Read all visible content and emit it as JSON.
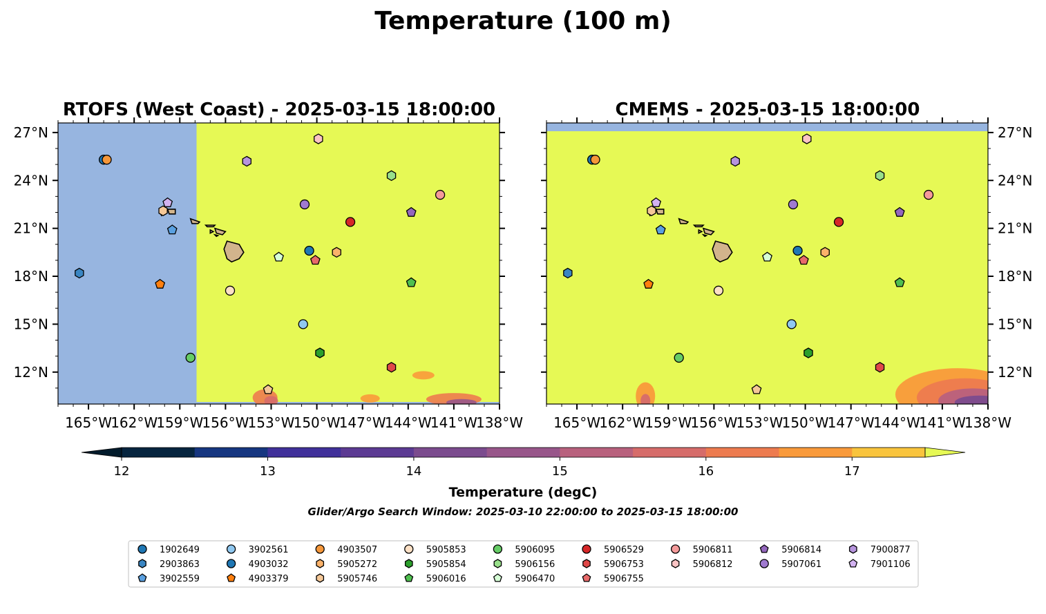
{
  "figure": {
    "title": "Temperature (100 m)",
    "subtitle": "Glider/Argo Search Window: 2025-03-10 22:00:00 to 2025-03-15 18:00:00"
  },
  "chart_data": {
    "type": "map",
    "title": "Temperature (100 m)",
    "panels": [
      {
        "title": "RTOFS (West Coast) - 2025-03-15 18:00:00",
        "lon_range": [
          -167,
          -138
        ],
        "lat_range": [
          10,
          27.6
        ],
        "model_domain_west_edge_lon": -157.9,
        "colored_field": "mostly >17.5 degC with warm-pool edges 15-17 degC near 10-12N"
      },
      {
        "title": "CMEMS - 2025-03-15 18:00:00",
        "lon_range": [
          -167,
          -138
        ],
        "lat_range": [
          10,
          27.6
        ],
        "colored_field": "mostly >17.5 degC with cooler 13-16 degC waters near 10-12N in the southeast"
      }
    ],
    "x_ticks": [
      "165°W",
      "162°W",
      "159°W",
      "156°W",
      "153°W",
      "150°W",
      "147°W",
      "144°W",
      "141°W",
      "138°W"
    ],
    "x_tick_values": [
      -165,
      -162,
      -159,
      -156,
      -153,
      -150,
      -147,
      -144,
      -141,
      -138
    ],
    "y_ticks": [
      "12°N",
      "15°N",
      "18°N",
      "21°N",
      "24°N",
      "27°N"
    ],
    "y_tick_values": [
      12,
      15,
      18,
      21,
      24,
      27
    ],
    "colorbar": {
      "label": "Temperature (degC)",
      "ticks": [
        "12",
        "13",
        "14",
        "15",
        "16",
        "17"
      ],
      "tick_values": [
        12,
        13,
        14,
        15,
        16,
        17
      ],
      "min": 12,
      "max": 17.5,
      "step": 0.5,
      "colors": [
        "#06253f",
        "#163680",
        "#40309a",
        "#5c3a93",
        "#7b4b8e",
        "#98568a",
        "#b8617d",
        "#d66c6a",
        "#ed7b4f",
        "#f99a3b",
        "#f9c43d"
      ],
      "under_color": "#021b2c",
      "over_color": "#e6f955"
    },
    "ocean_nodata_color": "#97b5e0",
    "land_color": "#d2b48c",
    "floats": [
      {
        "id": "1902649",
        "lon": -164.0,
        "lat": 25.3,
        "marker": "circle",
        "color": "#1f77b4"
      },
      {
        "id": "2903863",
        "lon": -165.6,
        "lat": 18.2,
        "marker": "hexagon",
        "color": "#3a86c3"
      },
      {
        "id": "3902559",
        "lon": -159.5,
        "lat": 20.9,
        "marker": "pentagon",
        "color": "#5aa0e0"
      },
      {
        "id": "3902561",
        "lon": -150.9,
        "lat": 15.0,
        "marker": "circle",
        "color": "#90c8f0"
      },
      {
        "id": "4903032",
        "lon": -150.5,
        "lat": 19.6,
        "marker": "circle",
        "color": "#1f77b4"
      },
      {
        "id": "4903379",
        "lon": -160.3,
        "lat": 17.5,
        "marker": "pentagon",
        "color": "#ff7f0e"
      },
      {
        "id": "4903507",
        "lon": -163.8,
        "lat": 25.3,
        "marker": "circle",
        "color": "#f5973a"
      },
      {
        "id": "5905272",
        "lon": -148.7,
        "lat": 19.5,
        "marker": "hexagon",
        "color": "#fbb26a"
      },
      {
        "id": "5905746",
        "lon": -160.1,
        "lat": 22.1,
        "marker": "hexagon",
        "color": "#f5c898"
      },
      {
        "id": "5905853",
        "lon": -155.7,
        "lat": 17.1,
        "marker": "circle",
        "color": "#fde0c5"
      },
      {
        "id": "5905854",
        "lon": -149.8,
        "lat": 13.2,
        "marker": "hexagon",
        "color": "#2ca02c"
      },
      {
        "id": "5906016",
        "lon": -143.8,
        "lat": 17.6,
        "marker": "pentagon",
        "color": "#4fbf4f"
      },
      {
        "id": "5906095",
        "lon": -158.3,
        "lat": 12.9,
        "marker": "circle",
        "color": "#66cc66"
      },
      {
        "id": "5906156",
        "lon": -145.1,
        "lat": 24.3,
        "marker": "hexagon",
        "color": "#98df8a"
      },
      {
        "id": "5906470",
        "lon": -152.5,
        "lat": 19.2,
        "marker": "pentagon",
        "color": "#d6ffd6"
      },
      {
        "id": "5906529",
        "lon": -147.8,
        "lat": 21.4,
        "marker": "circle",
        "color": "#d62728"
      },
      {
        "id": "5906753",
        "lon": -145.1,
        "lat": 12.3,
        "marker": "hexagon",
        "color": "#e04848"
      },
      {
        "id": "5906755",
        "lon": -150.1,
        "lat": 19.0,
        "marker": "pentagon",
        "color": "#e86a6a"
      },
      {
        "id": "5906811",
        "lon": -141.9,
        "lat": 23.1,
        "marker": "circle",
        "color": "#f49a9a"
      },
      {
        "id": "5906812",
        "lon": -149.9,
        "lat": 26.6,
        "marker": "hexagon",
        "color": "#fcc4c4"
      },
      {
        "id": "5906814",
        "lon": -143.8,
        "lat": 22.0,
        "marker": "pentagon",
        "color": "#9467bd"
      },
      {
        "id": "5907061",
        "lon": -150.8,
        "lat": 22.5,
        "marker": "circle",
        "color": "#a07ad0"
      },
      {
        "id": "7900877",
        "lon": -154.6,
        "lat": 25.2,
        "marker": "hexagon",
        "color": "#b694dd"
      },
      {
        "id": "7901106",
        "lon": -159.8,
        "lat": 22.6,
        "marker": "pentagon",
        "color": "#d2b2f0"
      },
      {
        "id": "5905746b",
        "lon": -153.2,
        "lat": 10.9,
        "marker": "pentagon",
        "color": "#f5c898",
        "unlabeled": true
      }
    ],
    "legend_columns": [
      [
        "1902649",
        "2903863",
        "3902559"
      ],
      [
        "3902561",
        "4903032",
        "4903379"
      ],
      [
        "4903507",
        "5905272",
        "5905746"
      ],
      [
        "5905853",
        "5905854",
        "5906016"
      ],
      [
        "5906095",
        "5906156",
        "5906470"
      ],
      [
        "5906529",
        "5906753",
        "5906755"
      ],
      [
        "5906811",
        "5906812"
      ],
      [
        "5906814",
        "5907061"
      ],
      [
        "7900877",
        "7901106"
      ]
    ]
  }
}
